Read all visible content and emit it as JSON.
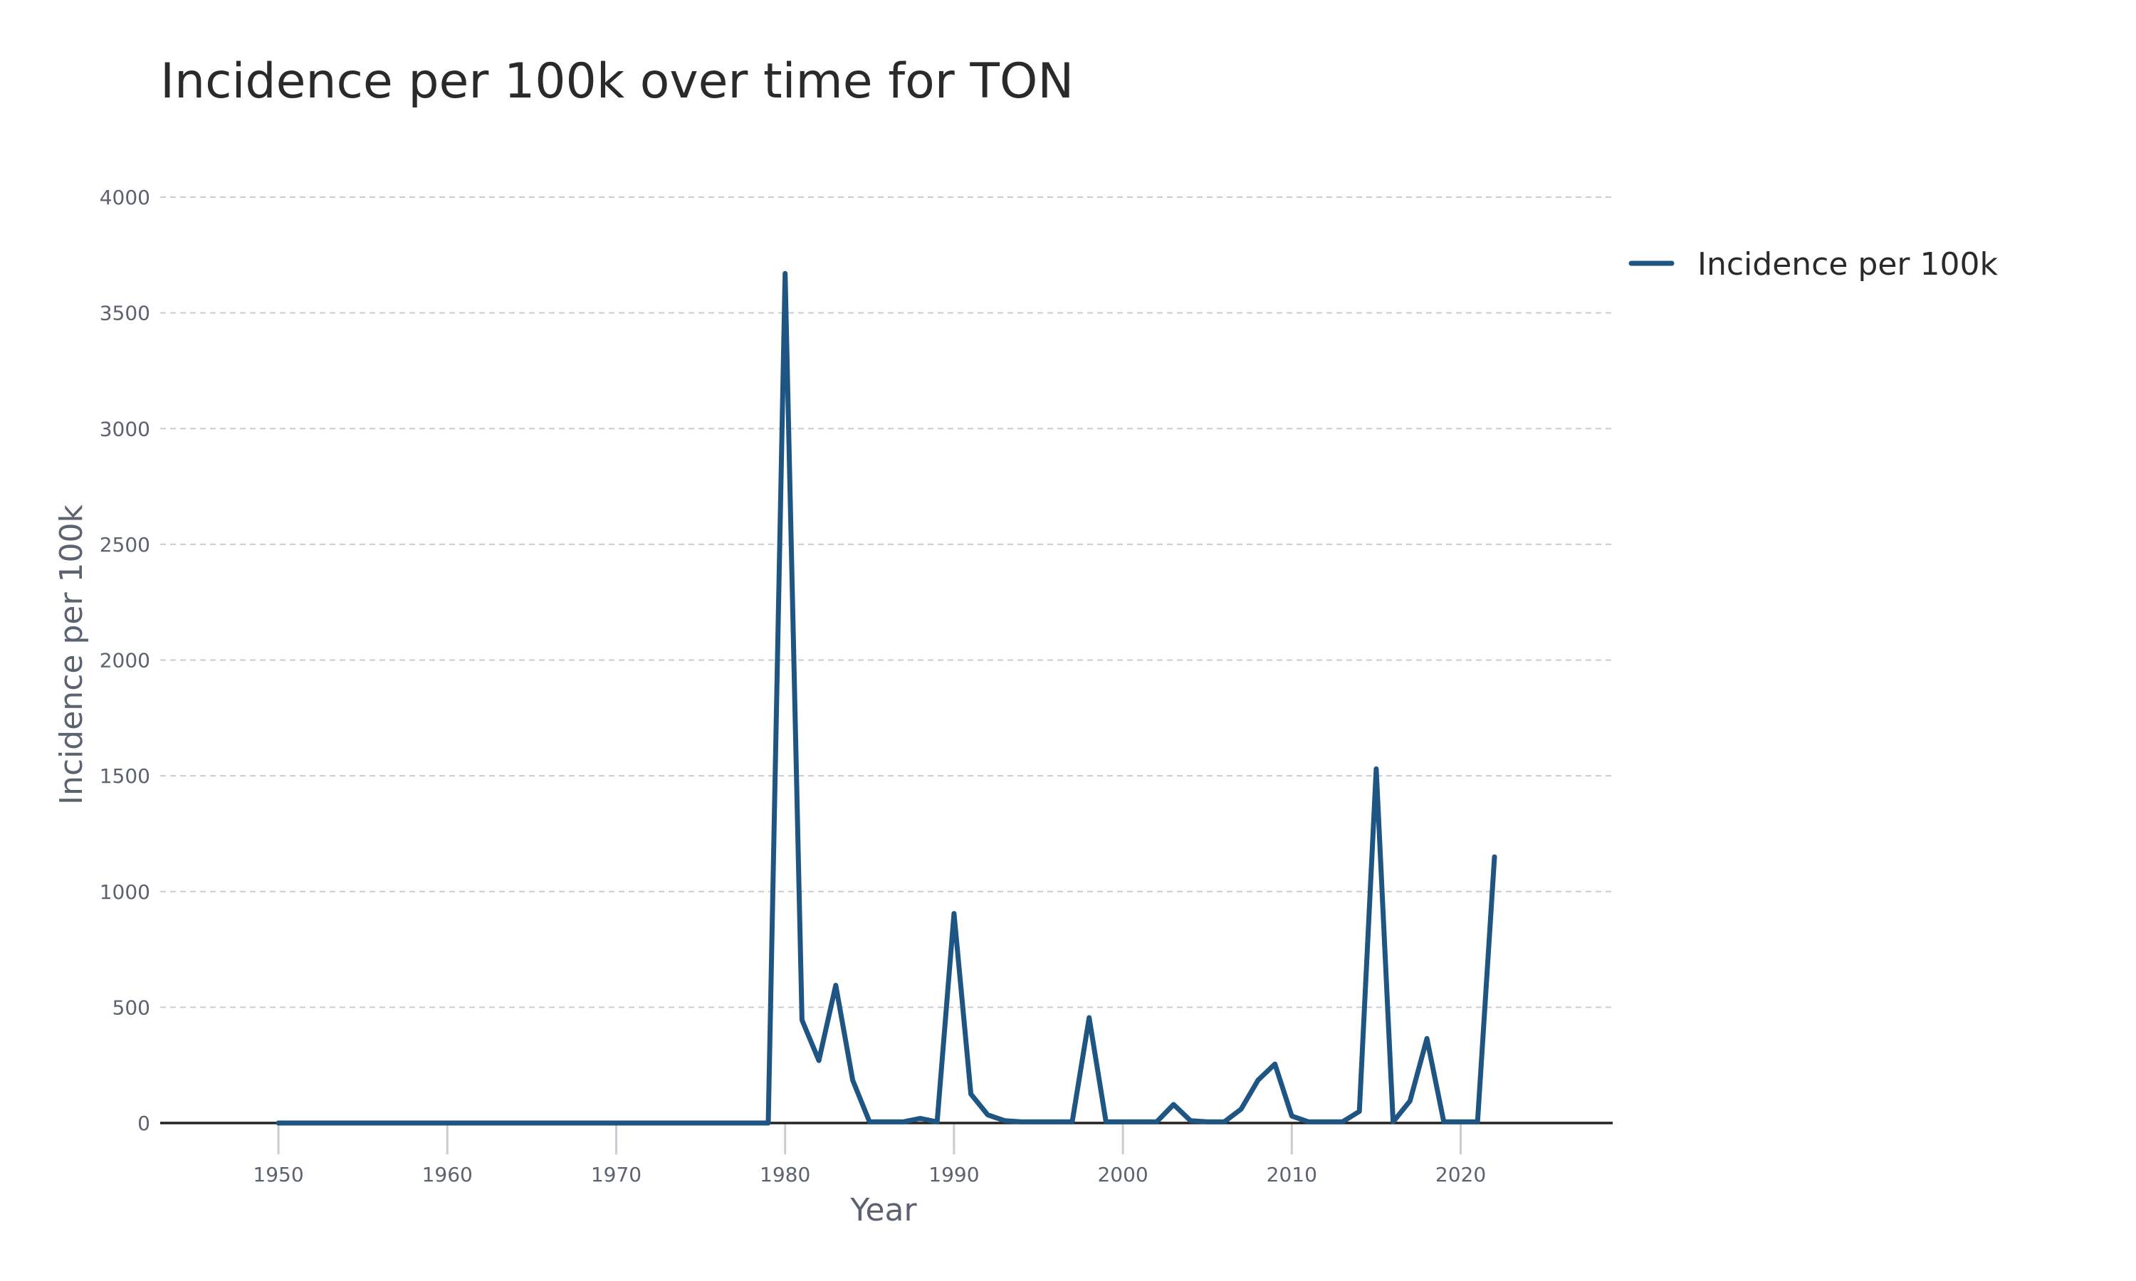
{
  "chart_data": {
    "type": "line",
    "title": "Incidence per 100k over time for TON",
    "xlabel": "Year",
    "ylabel": "Incidence per 100k",
    "xlim": [
      1943,
      2029
    ],
    "ylim": [
      0,
      4000
    ],
    "x_ticks": [
      1950,
      1960,
      1970,
      1980,
      1990,
      2000,
      2010,
      2020
    ],
    "y_ticks": [
      0,
      500,
      1000,
      1500,
      2000,
      2500,
      3000,
      3500,
      4000
    ],
    "grid": true,
    "legend_position": "top-right",
    "series": [
      {
        "name": "Incidence per 100k",
        "color": "#1f5582",
        "x": [
          1950,
          1951,
          1952,
          1953,
          1954,
          1955,
          1956,
          1957,
          1958,
          1959,
          1960,
          1961,
          1962,
          1963,
          1964,
          1965,
          1966,
          1967,
          1968,
          1969,
          1970,
          1971,
          1972,
          1973,
          1974,
          1975,
          1976,
          1977,
          1978,
          1979,
          1980,
          1981,
          1982,
          1983,
          1984,
          1985,
          1986,
          1987,
          1988,
          1989,
          1990,
          1991,
          1992,
          1993,
          1994,
          1995,
          1996,
          1997,
          1998,
          1999,
          2000,
          2001,
          2002,
          2003,
          2004,
          2005,
          2006,
          2007,
          2008,
          2009,
          2010,
          2011,
          2012,
          2013,
          2014,
          2015,
          2016,
          2017,
          2018,
          2019,
          2020,
          2021,
          2022
        ],
        "y": [
          0,
          0,
          0,
          0,
          0,
          0,
          0,
          0,
          0,
          0,
          0,
          0,
          0,
          0,
          0,
          0,
          0,
          0,
          0,
          0,
          0,
          0,
          0,
          0,
          0,
          0,
          0,
          0,
          0,
          0,
          3670,
          445,
          270,
          595,
          185,
          5,
          5,
          5,
          20,
          5,
          905,
          125,
          35,
          10,
          5,
          5,
          5,
          5,
          455,
          5,
          5,
          5,
          5,
          80,
          10,
          5,
          5,
          60,
          185,
          255,
          30,
          5,
          5,
          5,
          50,
          1530,
          5,
          95,
          365,
          5,
          5,
          5,
          1150
        ]
      }
    ]
  }
}
